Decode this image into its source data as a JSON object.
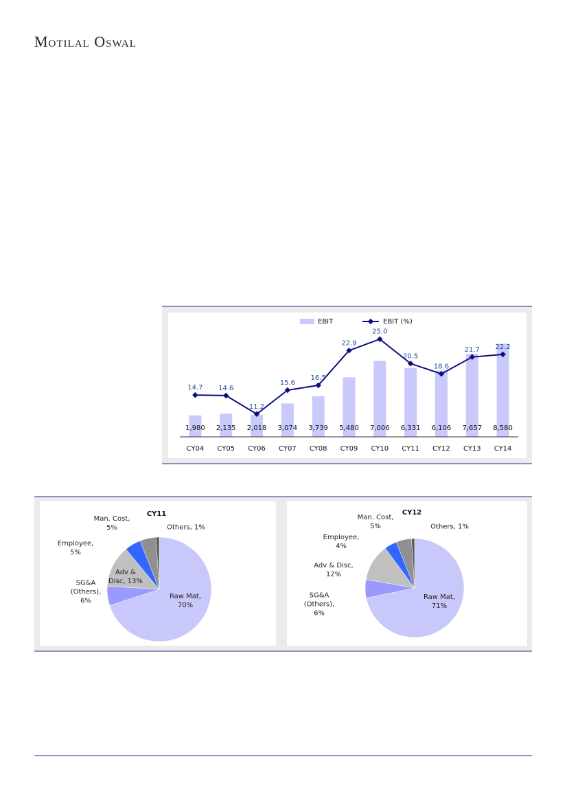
{
  "header": {
    "brand": "Motilal Oswal"
  },
  "chart_data": [
    {
      "type": "bar",
      "categories": [
        "CY04",
        "CY05",
        "CY06",
        "CY07",
        "CY08",
        "CY09",
        "CY10",
        "CY11",
        "CY12",
        "CY13",
        "CY14"
      ],
      "series": [
        {
          "name": "EBIT",
          "type": "bar",
          "color": "#c9c9fb",
          "values": [
            1980,
            2135,
            2018,
            3074,
            3739,
            5480,
            7006,
            6331,
            6106,
            7657,
            8580
          ],
          "value_labels": [
            "1,980",
            "2,135",
            "2,018",
            "3,074",
            "3,739",
            "5,480",
            "7,006",
            "6,331",
            "6,106",
            "7,657",
            "8,580"
          ]
        },
        {
          "name": "EBIT (%)",
          "type": "line",
          "axis": "y2",
          "color": "#0d0d80",
          "values": [
            14.7,
            14.6,
            11.2,
            15.6,
            16.5,
            22.9,
            25.0,
            20.5,
            18.6,
            21.7,
            22.2
          ],
          "value_labels": [
            "14.7",
            "14.6",
            "11.2",
            "15.6",
            "16.5",
            "22.9",
            "25.0",
            "20.5",
            "18.6",
            "21.7",
            "22.2"
          ]
        }
      ],
      "ylim": [
        0,
        10500
      ],
      "y2lim": [
        7,
        28
      ],
      "legend": "top"
    },
    {
      "type": "pie",
      "title": "CY11",
      "categories": [
        "Raw Mat",
        "SG&A (Others)",
        "Adv & Disc",
        "Employee",
        "Man. Cost",
        "Others"
      ],
      "values": [
        70,
        6,
        13,
        5,
        5,
        1
      ],
      "labels": [
        "Raw Mat, 70%",
        "SG&A (Others), 6%",
        "Adv & Disc, 13%",
        "Employee, 5%",
        "Man. Cost, 5%",
        "Others, 1%"
      ],
      "colors": [
        "#c8c8fa",
        "#9999ff",
        "#c0c0c0",
        "#3366ff",
        "#909090",
        "#5a5a5a"
      ]
    },
    {
      "type": "pie",
      "title": "CY12",
      "categories": [
        "Raw Mat",
        "SG&A (Others)",
        "Adv & Disc",
        "Employee",
        "Man. Cost",
        "Others"
      ],
      "values": [
        71,
        6,
        12,
        4,
        5,
        1
      ],
      "labels": [
        "Raw Mat, 71%",
        "SG&A (Others), 6%",
        "Adv & Disc, 12%",
        "Employee, 4%",
        "Man. Cost, 5%",
        "Others, 1%"
      ],
      "colors": [
        "#c8c8fa",
        "#9999ff",
        "#c0c0c0",
        "#3366ff",
        "#909090",
        "#5a5a5a"
      ]
    }
  ]
}
